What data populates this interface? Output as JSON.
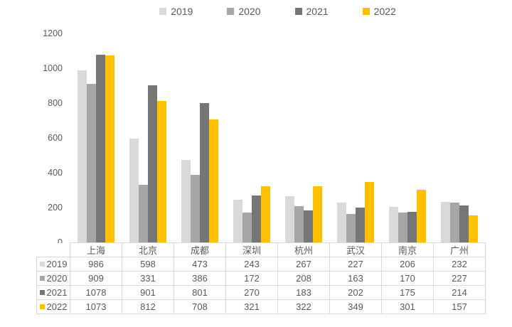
{
  "colors": {
    "background": "#ffffff",
    "text": "#595959",
    "table_border": "#d9d9d9",
    "series_2019": "#d9d9d9",
    "series_2020": "#a6a6a6",
    "series_2021": "#767676",
    "series_2022": "#ffc000"
  },
  "chart_data": {
    "type": "bar",
    "title": "",
    "xlabel": "",
    "ylabel": "",
    "categories": [
      "上海",
      "北京",
      "成都",
      "深圳",
      "杭州",
      "武汉",
      "南京",
      "广州"
    ],
    "series": [
      {
        "name": "2019",
        "color": "#d9d9d9",
        "values": [
          986,
          598,
          473,
          243,
          267,
          227,
          206,
          232
        ]
      },
      {
        "name": "2020",
        "color": "#a6a6a6",
        "values": [
          909,
          331,
          386,
          172,
          208,
          163,
          170,
          227
        ]
      },
      {
        "name": "2021",
        "color": "#767676",
        "values": [
          1078,
          901,
          801,
          270,
          183,
          202,
          175,
          214
        ]
      },
      {
        "name": "2022",
        "color": "#ffc000",
        "values": [
          1073,
          812,
          708,
          321,
          322,
          349,
          301,
          157
        ]
      }
    ],
    "ylim": [
      0,
      1200
    ],
    "yticks": [
      0,
      200,
      400,
      600,
      800,
      1000,
      1200
    ],
    "grid": false,
    "legend_position": "top",
    "data_table_with_legend_keys": true
  }
}
